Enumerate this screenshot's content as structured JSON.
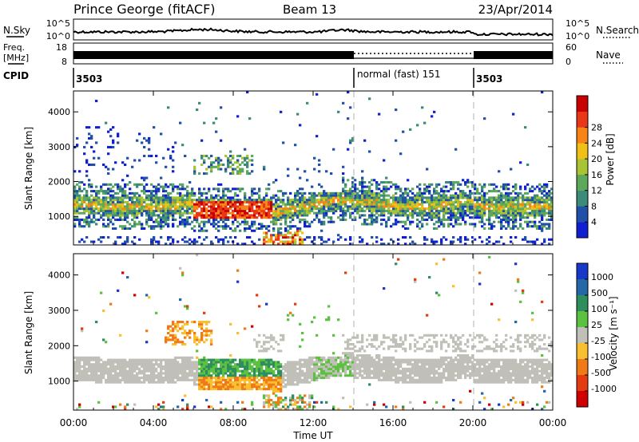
{
  "header": {
    "title": "Prince George (fitACF)",
    "beam": "Beam 13",
    "date": "23/Apr/2014"
  },
  "strips": {
    "nsky_label": "N.Sky",
    "nsearch_label": "N.Search",
    "nsky_ticks": [
      "10^5",
      "10^0"
    ],
    "nsearch_ticks": [
      "10^5",
      "10^0"
    ],
    "freq_label_1": "Freq.",
    "freq_label_2": "[MHz]",
    "freq_ticks": [
      "18",
      "8"
    ],
    "nave_label": "Nave",
    "nave_ticks": [
      "60",
      "0"
    ],
    "cpid_label": "CPID",
    "cpid_segments": [
      {
        "label": "3503",
        "start_h": 0,
        "end_h": 14
      },
      {
        "label": "normal (fast) 151",
        "start_h": 14,
        "end_h": 20
      },
      {
        "label": "3503",
        "start_h": 20,
        "end_h": 24
      }
    ]
  },
  "chart_data": [
    {
      "type": "heatmap",
      "panel": "power",
      "ylabel": "Slant Range [km]",
      "yticks": [
        1000,
        2000,
        3000,
        4000
      ],
      "ylim": [
        180,
        4600
      ],
      "xlim": [
        0,
        24
      ],
      "colorbar": {
        "label": "Power [dB]",
        "ticks": [
          "4",
          "8",
          "12",
          "16",
          "20",
          "24",
          "28"
        ],
        "colors": [
          "#1020d0",
          "#2050a8",
          "#3c8a78",
          "#5ea85c",
          "#a8c432",
          "#f0c016",
          "#f88418",
          "#e83818",
          "#c80000"
        ]
      }
    },
    {
      "type": "heatmap",
      "panel": "velocity",
      "ylabel": "Slant Range [km]",
      "yticks": [
        1000,
        2000,
        3000,
        4000
      ],
      "ylim": [
        180,
        4600
      ],
      "xlim": [
        0,
        24
      ],
      "xticks": [
        "00:00",
        "04:00",
        "08:00",
        "12:00",
        "16:00",
        "20:00",
        "00:00"
      ],
      "xlabel": "Time UT",
      "colorbar": {
        "label": "Velocity [m s⁻¹]",
        "ticks": [
          "1000",
          "500",
          "100",
          "25",
          "-25",
          "-100",
          "-500",
          "-1000"
        ],
        "colors": [
          "#1838c8",
          "#2468a8",
          "#2e8e5e",
          "#5cc040",
          "#c0c0b8",
          "#f8c030",
          "#f07a18",
          "#e43c10",
          "#d00000"
        ]
      }
    }
  ]
}
